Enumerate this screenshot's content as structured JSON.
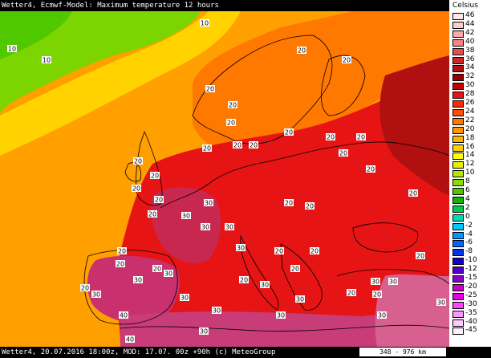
{
  "header": {
    "title": "Wetter4, Ecmwf-Model: Maximum temperature 12 hours"
  },
  "footer": {
    "text": "Wetter4, 20.07.2016 18:00z, MOD: 17.07. 00z +90h (c) MeteoGroup",
    "scale": "348 - 976 km"
  },
  "legend": {
    "unit": "Celsius",
    "items": [
      {
        "label": "46",
        "color": "#ffe6e6"
      },
      {
        "label": "44",
        "color": "#ffcccc"
      },
      {
        "label": "42",
        "color": "#ffaaaa"
      },
      {
        "label": "40",
        "color": "#ff8080"
      },
      {
        "label": "38",
        "color": "#e05050"
      },
      {
        "label": "36",
        "color": "#c82828"
      },
      {
        "label": "34",
        "color": "#b01010"
      },
      {
        "label": "32",
        "color": "#990000"
      },
      {
        "label": "30",
        "color": "#c80000"
      },
      {
        "label": "28",
        "color": "#e61414"
      },
      {
        "label": "26",
        "color": "#ff2800"
      },
      {
        "label": "24",
        "color": "#ff5000"
      },
      {
        "label": "22",
        "color": "#ff7800"
      },
      {
        "label": "20",
        "color": "#ff9600"
      },
      {
        "label": "18",
        "color": "#ffb400"
      },
      {
        "label": "16",
        "color": "#ffd200"
      },
      {
        "label": "14",
        "color": "#ffff00"
      },
      {
        "label": "12",
        "color": "#e6f000"
      },
      {
        "label": "10",
        "color": "#b4e600"
      },
      {
        "label": "8",
        "color": "#8cdc00"
      },
      {
        "label": "6",
        "color": "#50c800"
      },
      {
        "label": "4",
        "color": "#14b400"
      },
      {
        "label": "2",
        "color": "#00c850"
      },
      {
        "label": "0",
        "color": "#00dcb4"
      },
      {
        "label": "-2",
        "color": "#00c8ff"
      },
      {
        "label": "-4",
        "color": "#0096ff"
      },
      {
        "label": "-6",
        "color": "#0064ff"
      },
      {
        "label": "-8",
        "color": "#0032e6"
      },
      {
        "label": "-10",
        "color": "#1400c8"
      },
      {
        "label": "-12",
        "color": "#5000c8"
      },
      {
        "label": "-15",
        "color": "#8c00c8"
      },
      {
        "label": "-20",
        "color": "#c800c8"
      },
      {
        "label": "-25",
        "color": "#e600e6"
      },
      {
        "label": "-30",
        "color": "#ff46ff"
      },
      {
        "label": "-35",
        "color": "#ff96ff"
      },
      {
        "label": "-40",
        "color": "#ffc8ff"
      },
      {
        "label": "-45",
        "color": "#fff0ff"
      }
    ]
  },
  "isotherms": [
    "10",
    "10",
    "10",
    "20",
    "20",
    "20",
    "20",
    "20",
    "20",
    "20",
    "20",
    "20",
    "20",
    "20",
    "20",
    "20",
    "20",
    "20",
    "20",
    "20",
    "20",
    "20",
    "20",
    "20",
    "20",
    "20",
    "20",
    "20",
    "20",
    "20",
    "20",
    "20",
    "20",
    "20",
    "20",
    "30",
    "30",
    "30",
    "30",
    "30",
    "30",
    "30",
    "30",
    "30",
    "30",
    "30",
    "30",
    "30",
    "30",
    "30",
    "30",
    "30",
    "30",
    "40",
    "40"
  ],
  "colors": {
    "atlantic_yellow": "#ffb400",
    "green_north": "#8cdc00",
    "orange": "#ff7800",
    "red": "#e61414",
    "hot_pink": "#c82850",
    "coast": "#000000"
  }
}
